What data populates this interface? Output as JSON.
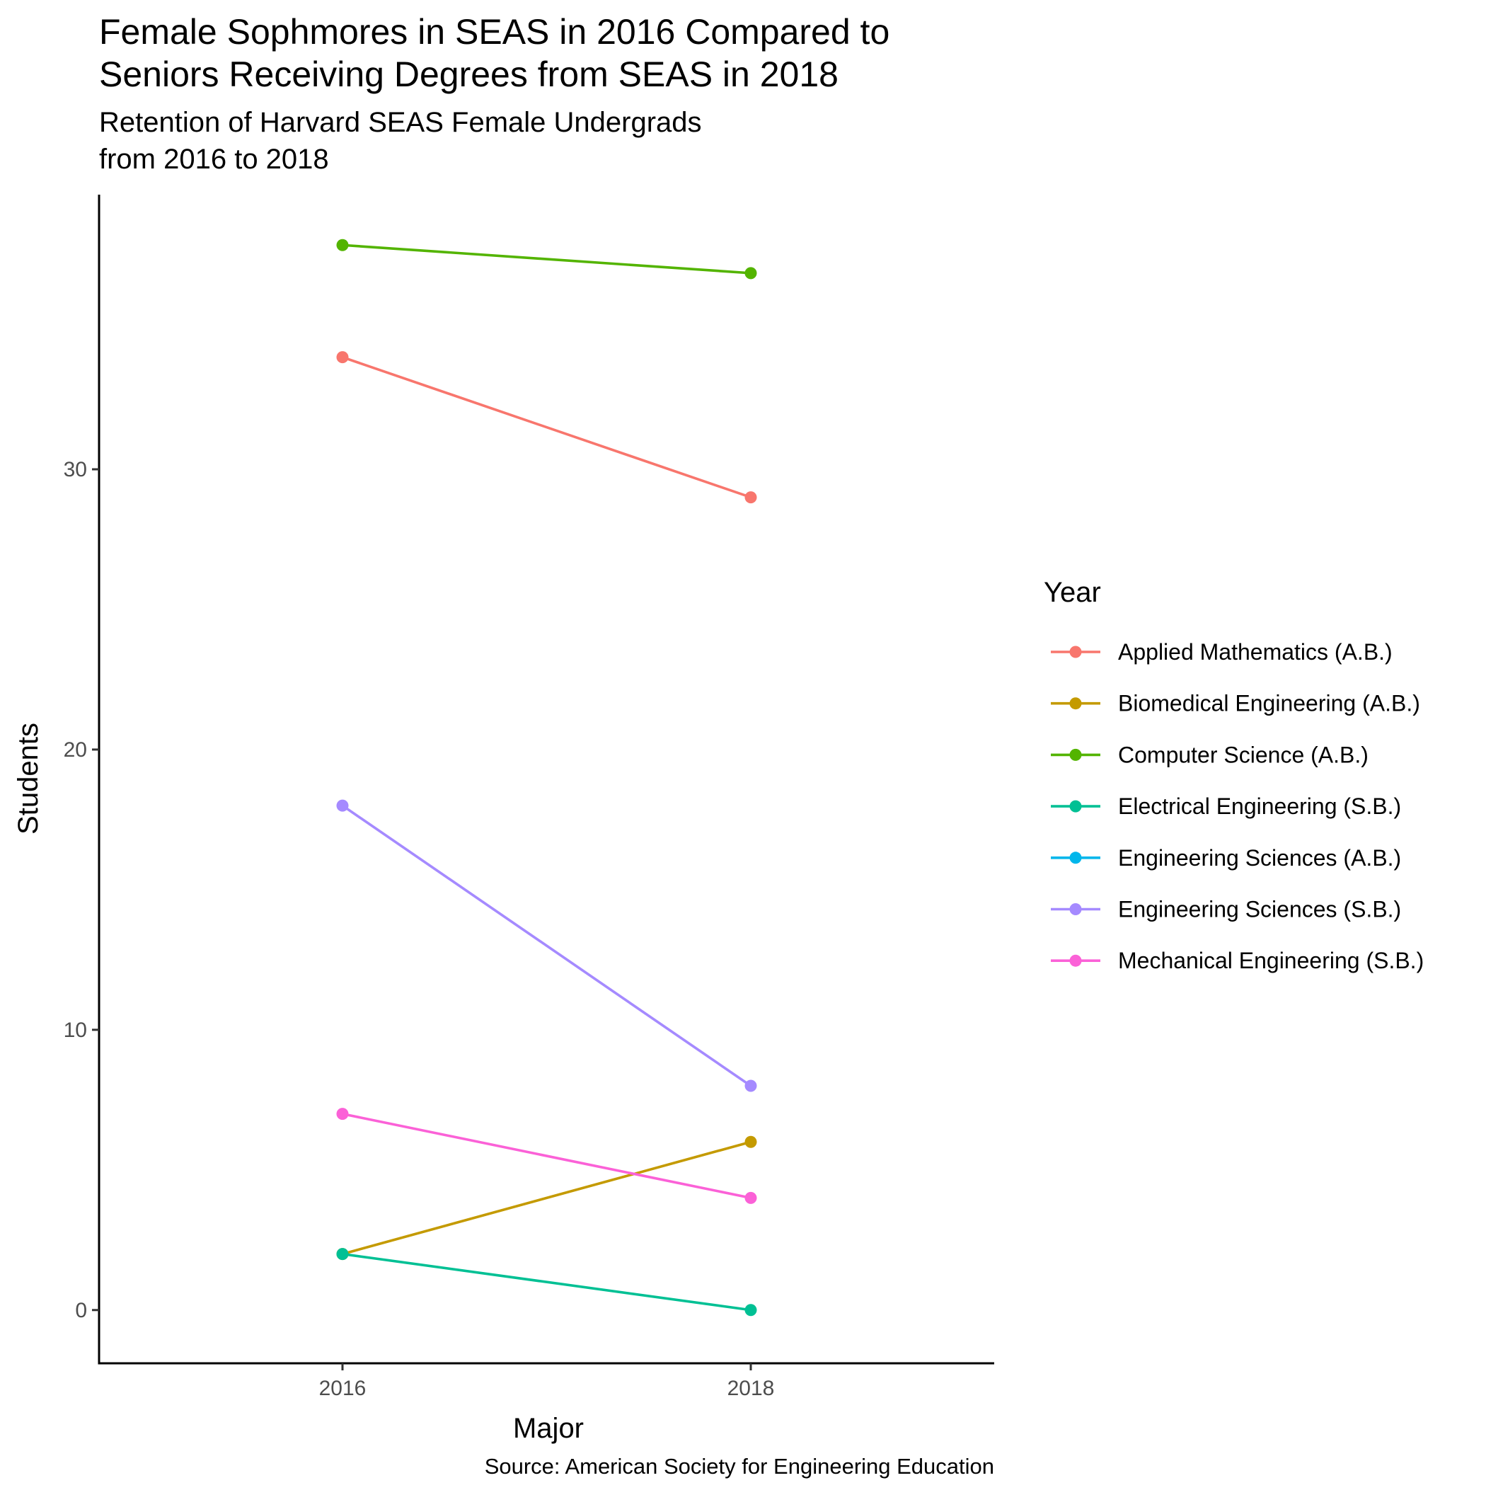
{
  "chart_data": {
    "type": "line",
    "title": [
      "Female Sophmores in SEAS in 2016 Compared to",
      "Seniors Receiving Degrees from SEAS in 2018"
    ],
    "subtitle": [
      "Retention of Harvard SEAS Female Undergrads",
      "from 2016 to 2018"
    ],
    "xlabel": "Major",
    "ylabel": "Students",
    "caption": "Source: American Society for Engineering Education",
    "x_categories": [
      "2016",
      "2018"
    ],
    "ylim": [
      -1.9,
      39.8
    ],
    "yticks": [
      0,
      10,
      20,
      30
    ],
    "grid": false,
    "legend": {
      "title": "Year",
      "position": "right"
    },
    "series": [
      {
        "name": "Applied Mathematics (A.B.)",
        "color": "#F8766D",
        "values": [
          34,
          29
        ]
      },
      {
        "name": "Biomedical Engineering (A.B.)",
        "color": "#C49A00",
        "values": [
          2,
          6
        ]
      },
      {
        "name": "Computer Science (A.B.)",
        "color": "#53B400",
        "values": [
          38,
          37
        ]
      },
      {
        "name": "Electrical Engineering (S.B.)",
        "color": "#00C094",
        "values": [
          2,
          0
        ]
      },
      {
        "name": "Engineering Sciences (A.B.)",
        "color": "#00B6EB",
        "values": []
      },
      {
        "name": "Engineering Sciences (S.B.)",
        "color": "#A58AFF",
        "values": [
          18,
          8
        ]
      },
      {
        "name": "Mechanical Engineering (S.B.)",
        "color": "#FB61D7",
        "values": [
          7,
          4
        ]
      }
    ]
  }
}
